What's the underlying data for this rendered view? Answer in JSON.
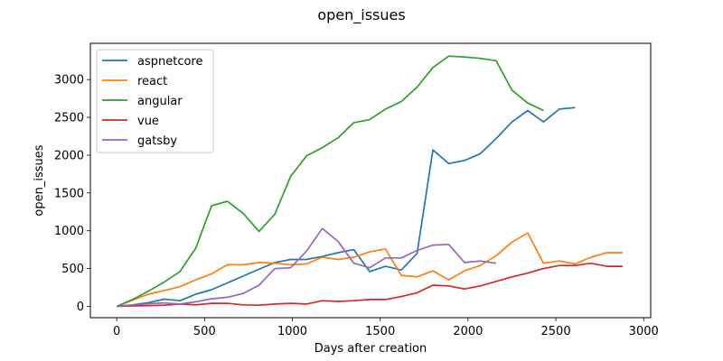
{
  "chart_data": {
    "type": "line",
    "title": "open_issues",
    "xlabel": "Days after creation",
    "ylabel": "open_issues",
    "xlim": [
      -150,
      3040
    ],
    "ylim": [
      -150,
      3480
    ],
    "xticks": [
      0,
      500,
      1000,
      1500,
      2000,
      2500,
      3000
    ],
    "yticks": [
      0,
      500,
      1000,
      1500,
      2000,
      2500,
      3000
    ],
    "grid": false,
    "legend_position": "top-left",
    "series": [
      {
        "name": "aspnetcore",
        "color": "#1f77b4",
        "x": [
          0,
          90,
          180,
          270,
          360,
          450,
          540,
          630,
          720,
          810,
          900,
          990,
          1080,
          1170,
          1260,
          1350,
          1440,
          1530,
          1620,
          1710,
          1800,
          1890,
          1980,
          2070,
          2160,
          2250,
          2340,
          2430,
          2520,
          2610
        ],
        "y": [
          0,
          20,
          50,
          95,
          75,
          160,
          220,
          310,
          400,
          490,
          580,
          620,
          620,
          660,
          710,
          750,
          460,
          530,
          480,
          700,
          2070,
          1890,
          1930,
          2020,
          2220,
          2440,
          2590,
          2440,
          2610,
          2630
        ]
      },
      {
        "name": "react",
        "color": "#ff7f0e",
        "x": [
          0,
          90,
          180,
          270,
          360,
          450,
          540,
          630,
          720,
          810,
          900,
          990,
          1080,
          1170,
          1260,
          1350,
          1440,
          1530,
          1620,
          1710,
          1800,
          1890,
          1980,
          2070,
          2160,
          2250,
          2340,
          2430,
          2520,
          2610,
          2700,
          2790,
          2880
        ],
        "y": [
          0,
          80,
          160,
          210,
          260,
          350,
          430,
          550,
          550,
          580,
          570,
          550,
          560,
          650,
          620,
          650,
          720,
          760,
          410,
          390,
          470,
          350,
          470,
          540,
          670,
          850,
          970,
          570,
          600,
          560,
          650,
          710,
          710
        ]
      },
      {
        "name": "angular",
        "color": "#2ca02c",
        "x": [
          0,
          90,
          180,
          270,
          360,
          450,
          540,
          630,
          720,
          810,
          900,
          990,
          1080,
          1170,
          1260,
          1350,
          1440,
          1530,
          1620,
          1710,
          1800,
          1890,
          1980,
          2070,
          2160,
          2250,
          2340,
          2430
        ],
        "y": [
          0,
          90,
          200,
          320,
          460,
          770,
          1330,
          1390,
          1230,
          990,
          1220,
          1720,
          1990,
          2100,
          2230,
          2430,
          2470,
          2610,
          2710,
          2900,
          3160,
          3310,
          3300,
          3280,
          3250,
          2860,
          2690,
          2590
        ]
      },
      {
        "name": "vue",
        "color": "#d62728",
        "x": [
          0,
          90,
          180,
          270,
          360,
          450,
          540,
          630,
          720,
          810,
          900,
          990,
          1080,
          1170,
          1260,
          1350,
          1440,
          1530,
          1620,
          1710,
          1800,
          1890,
          1980,
          2070,
          2160,
          2250,
          2340,
          2430,
          2520,
          2610,
          2700,
          2790,
          2880
        ],
        "y": [
          0,
          5,
          10,
          15,
          30,
          20,
          40,
          40,
          20,
          15,
          30,
          40,
          30,
          75,
          65,
          75,
          90,
          90,
          130,
          180,
          280,
          270,
          230,
          270,
          330,
          390,
          440,
          500,
          540,
          540,
          570,
          530,
          530
        ]
      },
      {
        "name": "gatsby",
        "color": "#9467bd",
        "x": [
          0,
          90,
          180,
          270,
          360,
          450,
          540,
          630,
          720,
          810,
          900,
          990,
          1080,
          1170,
          1260,
          1350,
          1440,
          1530,
          1620,
          1710,
          1800,
          1890,
          1980,
          2070,
          2160
        ],
        "y": [
          0,
          15,
          35,
          45,
          30,
          60,
          100,
          120,
          170,
          280,
          500,
          510,
          730,
          1030,
          860,
          570,
          510,
          640,
          640,
          740,
          810,
          820,
          580,
          600,
          570
        ]
      }
    ]
  }
}
